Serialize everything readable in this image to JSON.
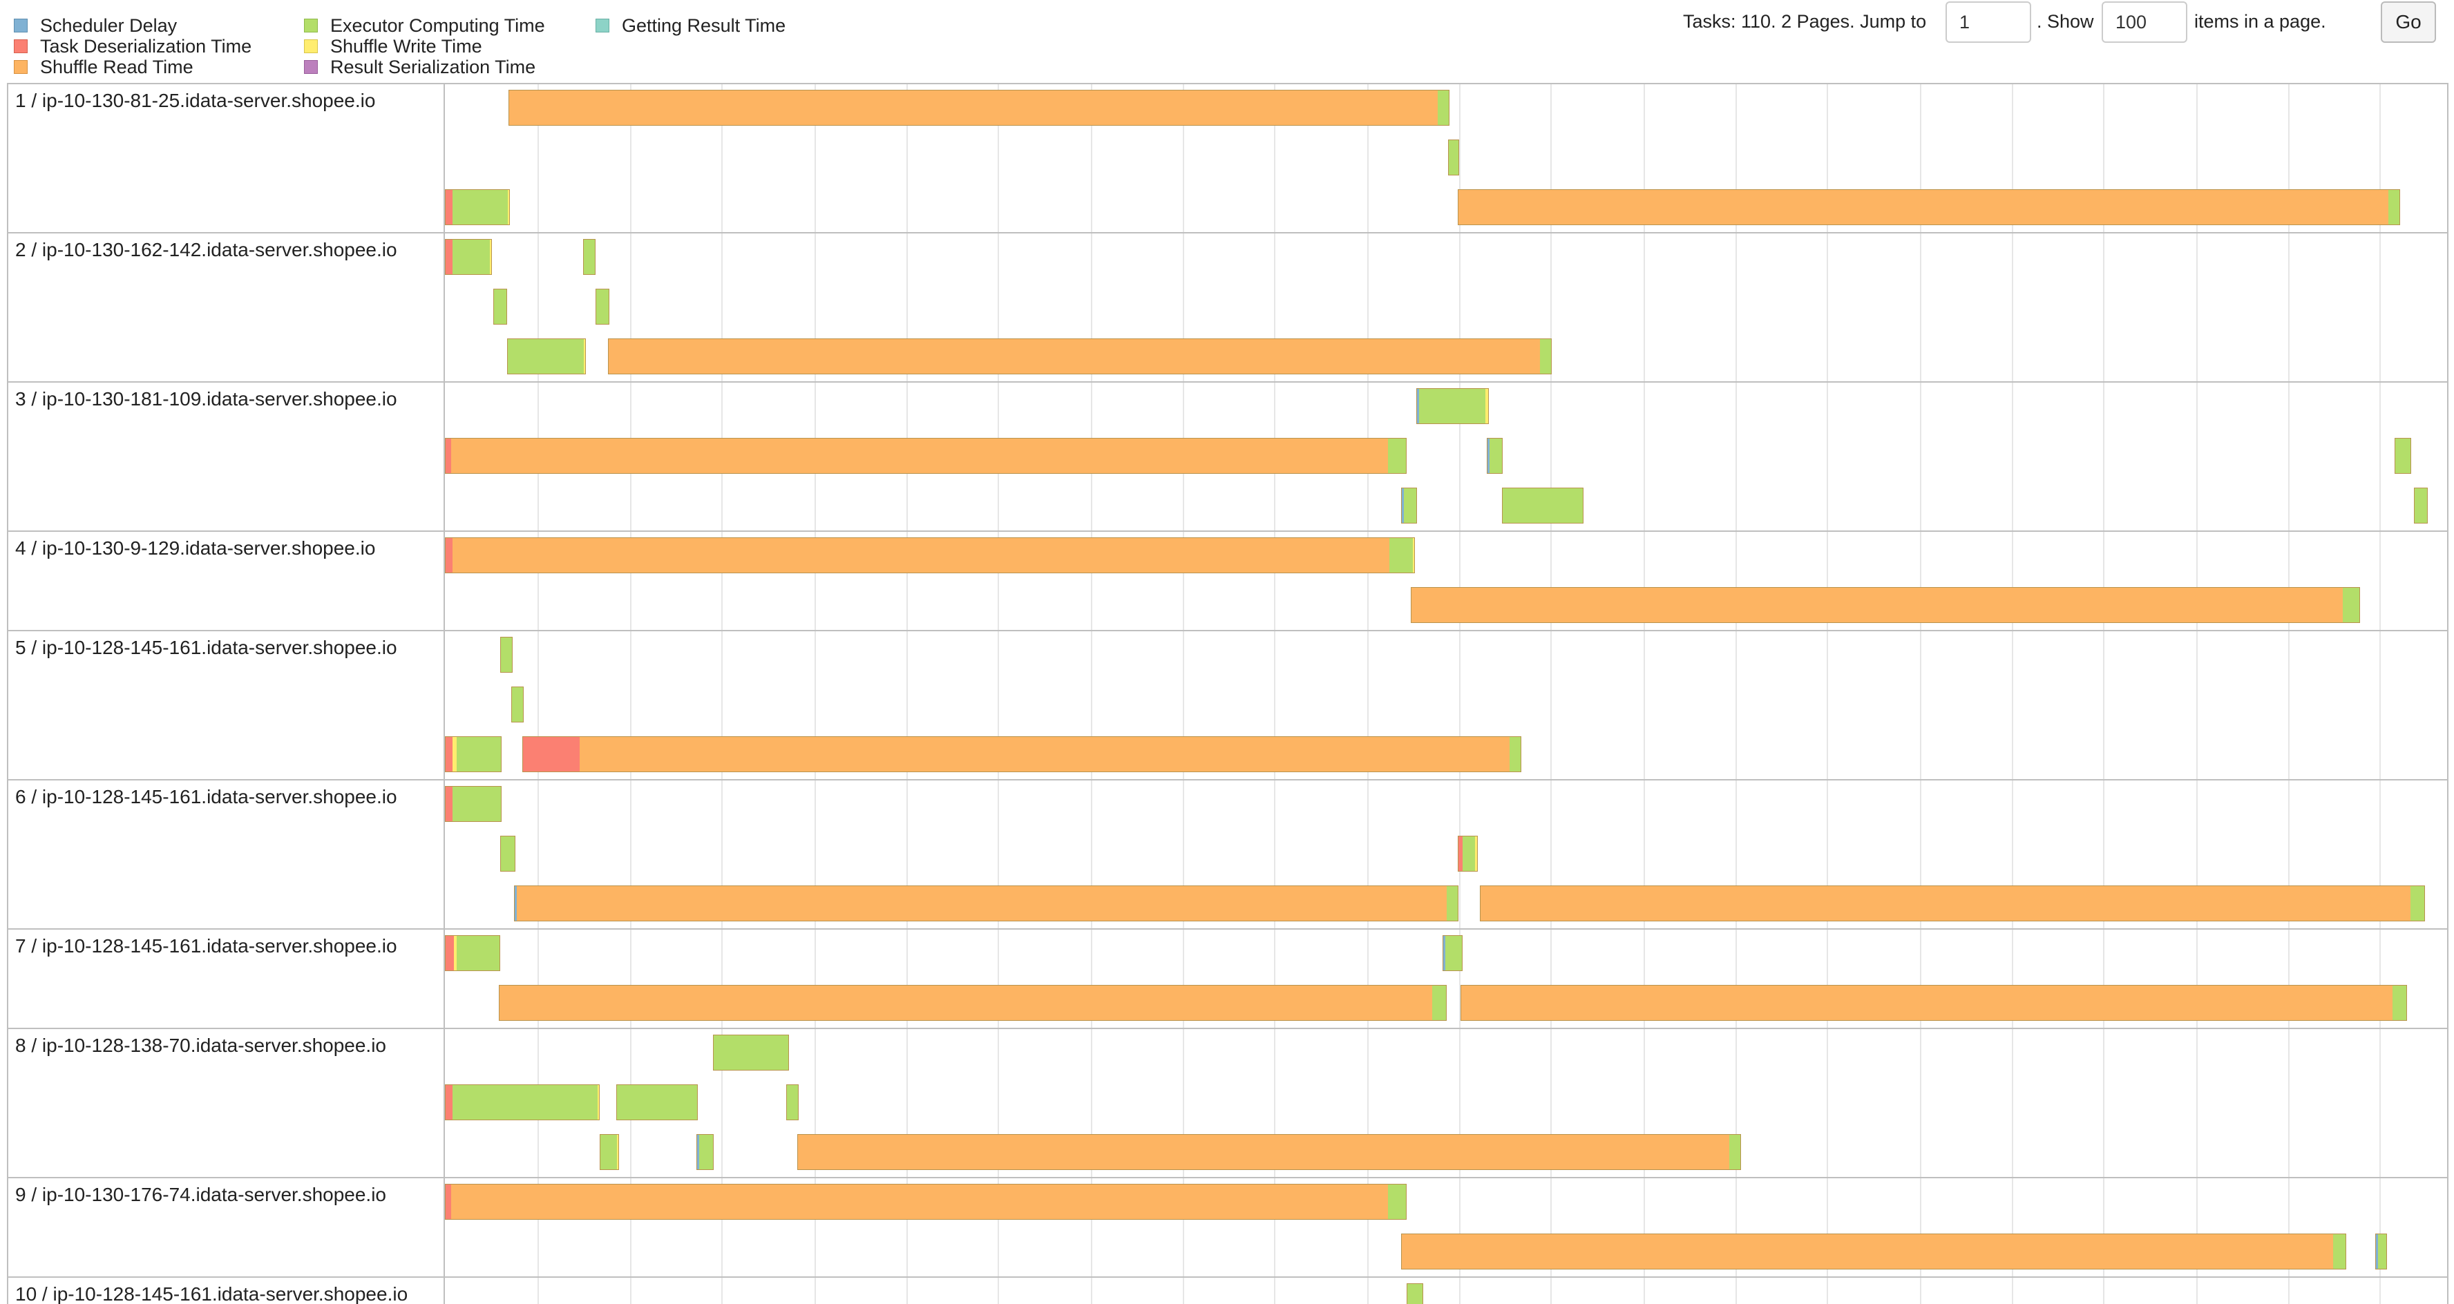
{
  "legend": {
    "items": [
      {
        "label": "Scheduler Delay",
        "color": "#80b1d3"
      },
      {
        "label": "Task Deserialization Time",
        "color": "#fb8072"
      },
      {
        "label": "Shuffle Read Time",
        "color": "#fdb462"
      },
      {
        "label": "Executor Computing Time",
        "color": "#b3de69"
      },
      {
        "label": "Shuffle Write Time",
        "color": "#ffed6f"
      },
      {
        "label": "Result Serialization Time",
        "color": "#bc80bd"
      },
      {
        "label": "Getting Result Time",
        "color": "#8dd3c7"
      }
    ]
  },
  "paging": {
    "tasks_text": "Tasks: 110. 2 Pages. Jump to",
    "page_value": "1",
    "show_text": ". Show",
    "page_size_value": "100",
    "items_text": "items in a page.",
    "go_label": "Go"
  },
  "executors": [
    {
      "label": "1 / ip-10-130-81-25.idata-server.shopee.io"
    },
    {
      "label": "2 / ip-10-130-162-142.idata-server.shopee.io"
    },
    {
      "label": "3 / ip-10-130-181-109.idata-server.shopee.io"
    },
    {
      "label": "4 / ip-10-130-9-129.idata-server.shopee.io"
    },
    {
      "label": "5 / ip-10-128-145-161.idata-server.shopee.io"
    },
    {
      "label": "6 / ip-10-128-145-161.idata-server.shopee.io"
    },
    {
      "label": "7 / ip-10-128-145-161.idata-server.shopee.io"
    },
    {
      "label": "8 / ip-10-128-138-70.idata-server.shopee.io"
    },
    {
      "label": "9 / ip-10-130-176-74.idata-server.shopee.io"
    },
    {
      "label": "10 / ip-10-128-145-161.idata-server.shopee.io"
    }
  ]
}
